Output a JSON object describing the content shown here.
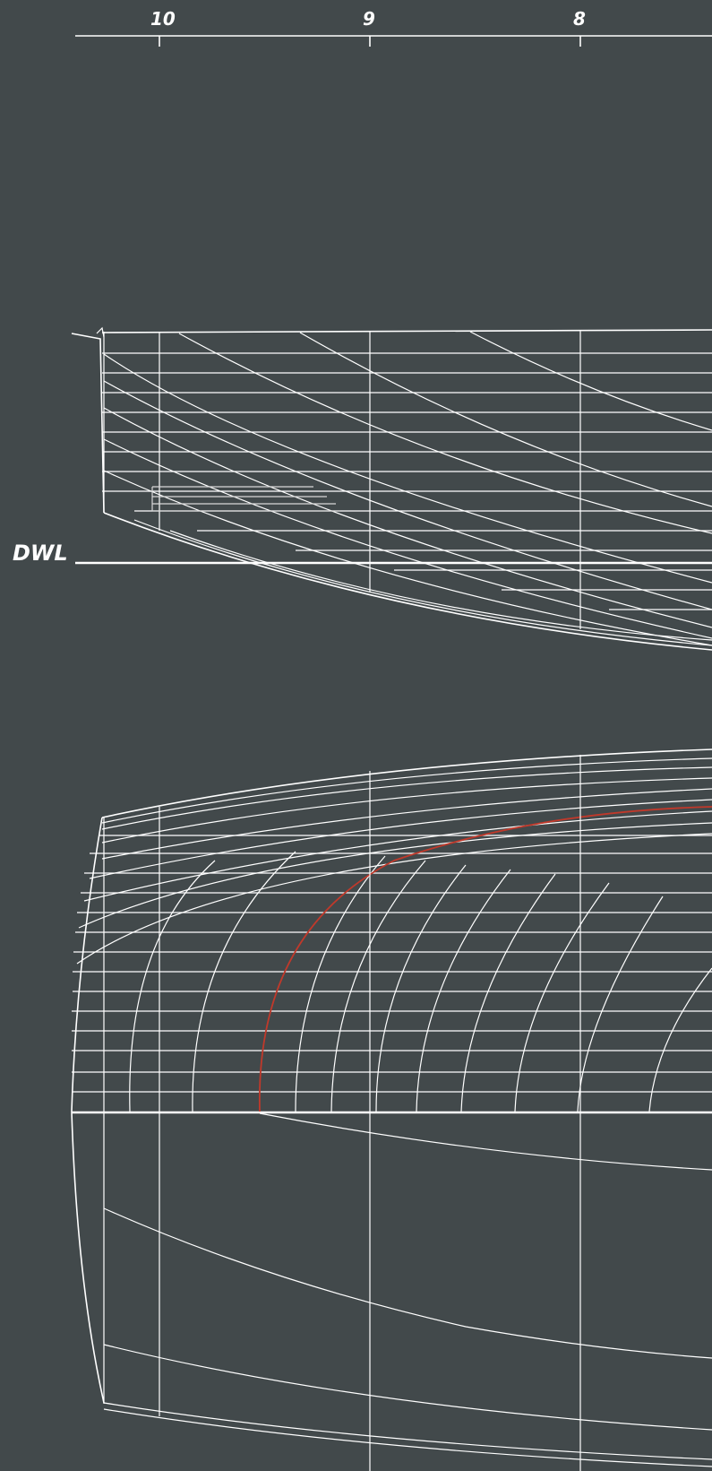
{
  "stations": [
    {
      "label": "10"
    },
    {
      "label": "9"
    },
    {
      "label": "8"
    }
  ],
  "waterline_label": "DWL",
  "colors": {
    "background": "#42494b",
    "line": "#ffffff",
    "highlight": "#c0392b"
  }
}
